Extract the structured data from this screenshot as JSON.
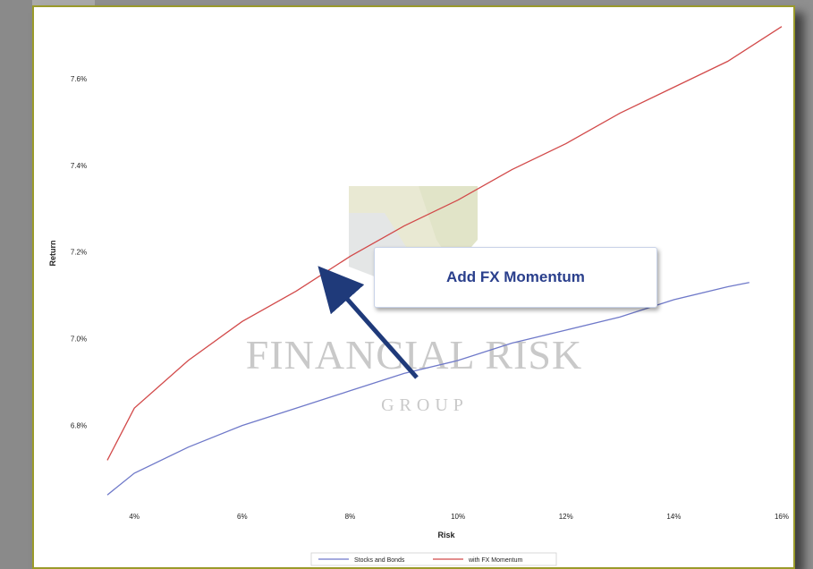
{
  "callout": {
    "text": "Add FX Momentum"
  },
  "watermark": {
    "line1": "FINANCIAL RISK",
    "line2": "GROUP"
  },
  "colors": {
    "stocks_bonds": "#6f79c9",
    "fx_momentum": "#d24a4a",
    "arrow": "#1f3a7a",
    "frame_border": "#9a9a2a"
  },
  "chart_data": {
    "type": "line",
    "title": "",
    "xlabel": "Risk",
    "ylabel": "Return",
    "x_ticks": [
      "4%",
      "6%",
      "8%",
      "10%",
      "12%",
      "14%",
      "16%"
    ],
    "y_ticks": [
      "6.8%",
      "7.0%",
      "7.2%",
      "7.4%",
      "7.6%"
    ],
    "xlim": [
      3.5,
      16.0
    ],
    "ylim": [
      6.63,
      7.74
    ],
    "grid": false,
    "legend_position": "bottom",
    "series": [
      {
        "name": "Stocks and Bonds",
        "x": [
          3.5,
          4.0,
          5.0,
          6.0,
          7.0,
          8.0,
          9.0,
          10.0,
          11.0,
          12.0,
          13.0,
          14.0,
          15.0,
          15.4
        ],
        "y": [
          6.64,
          6.69,
          6.75,
          6.8,
          6.84,
          6.88,
          6.92,
          6.95,
          6.99,
          7.02,
          7.05,
          7.09,
          7.12,
          7.13
        ]
      },
      {
        "name": "with FX Momentum",
        "x": [
          3.5,
          4.0,
          5.0,
          6.0,
          7.0,
          8.0,
          9.0,
          10.0,
          11.0,
          12.0,
          13.0,
          14.0,
          15.0,
          16.0
        ],
        "y": [
          6.72,
          6.84,
          6.95,
          7.04,
          7.11,
          7.19,
          7.26,
          7.32,
          7.39,
          7.45,
          7.52,
          7.58,
          7.64,
          7.72
        ]
      }
    ]
  }
}
